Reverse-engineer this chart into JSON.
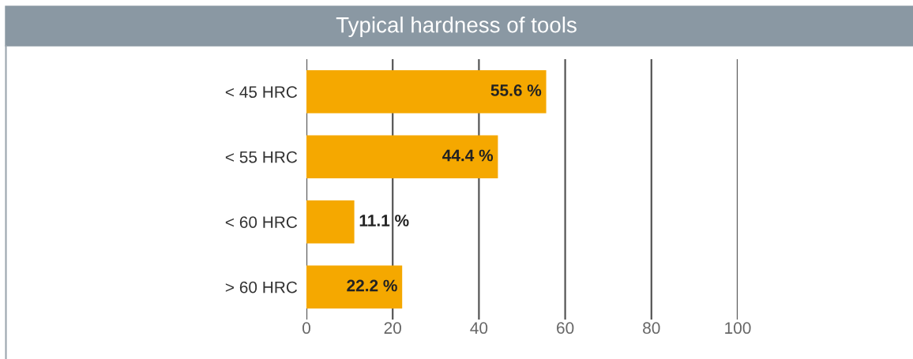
{
  "chart_data": {
    "type": "bar",
    "title": "Typical hardness of tools",
    "orientation": "horizontal",
    "categories": [
      "< 45 HRC",
      "< 55 HRC",
      "< 60 HRC",
      "> 60 HRC"
    ],
    "values": [
      55.6,
      44.4,
      11.1,
      22.2
    ],
    "value_labels": [
      "55.6 %",
      "44.4 %",
      "11.1 %",
      "22.2 %"
    ],
    "color": "#f5a800",
    "xlim": [
      0,
      100
    ],
    "xticks": [
      0,
      20,
      40,
      60,
      80,
      100
    ],
    "grid": "x",
    "legend": false
  }
}
